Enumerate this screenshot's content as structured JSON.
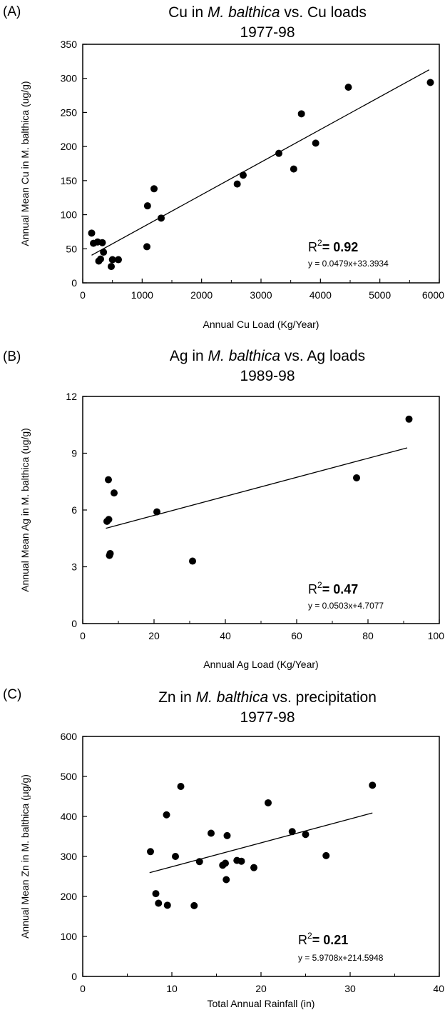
{
  "chart_data": [
    {
      "type": "scatter",
      "panel_label": "(A)",
      "title": {
        "prefix": "Cu in ",
        "italic": "M. balthica",
        "suffix": " vs. Cu loads",
        "line2": "1977-98"
      },
      "xlabel": "Annual Cu Load (Kg/Year)",
      "ylabel": "Annual Mean Cu in M. balthica (ug/g)",
      "xlim": [
        0,
        6000
      ],
      "ylim": [
        0,
        350
      ],
      "xticks": [
        0,
        1000,
        2000,
        3000,
        4000,
        5000,
        6000
      ],
      "yticks": [
        0,
        50,
        100,
        150,
        200,
        250,
        300,
        350
      ],
      "x": [
        150,
        180,
        250,
        270,
        300,
        330,
        350,
        480,
        500,
        600,
        1080,
        1090,
        1200,
        1320,
        2600,
        2700,
        3300,
        3550,
        3680,
        3920,
        4470,
        5850
      ],
      "y": [
        73,
        58,
        60,
        32,
        35,
        59,
        45,
        24,
        34,
        34,
        53,
        113,
        138,
        95,
        145,
        158,
        190,
        167,
        248,
        205,
        287,
        294
      ],
      "trendline": {
        "slope": 0.0479,
        "intercept": 33.3934,
        "x_range": [
          150,
          5830
        ]
      },
      "r2_label": "R",
      "r2_sup": "2",
      "r2_value": "= 0.92",
      "equation": "y = 0.0479x+33.3934"
    },
    {
      "type": "scatter",
      "panel_label": "(B)",
      "title": {
        "prefix": "Ag in ",
        "italic": "M. balthica",
        "suffix": " vs. Ag loads",
        "line2": "1989-98"
      },
      "xlabel": "Annual Ag Load (Kg/Year)",
      "ylabel": "Annual Mean Ag in M. balthica (ug/g)",
      "xlim": [
        0,
        100
      ],
      "ylim": [
        0,
        12
      ],
      "xticks": [
        0,
        20,
        40,
        60,
        80,
        100
      ],
      "yticks": [
        0,
        3,
        6,
        9,
        12
      ],
      "x": [
        6.8,
        7.2,
        7.3,
        7.5,
        7.7,
        8.8,
        20.8,
        30.8,
        76.8,
        91.5
      ],
      "y": [
        5.4,
        7.6,
        5.5,
        3.6,
        3.7,
        6.9,
        5.9,
        3.3,
        7.7,
        10.8
      ],
      "trendline": {
        "slope": 0.0503,
        "intercept": 4.7077,
        "x_range": [
          6.5,
          91
        ]
      },
      "r2_label": "R",
      "r2_sup": "2",
      "r2_value": "= 0.47",
      "equation": "y = 0.0503x+4.7077"
    },
    {
      "type": "scatter",
      "panel_label": "(C)",
      "title": {
        "prefix": "Zn in ",
        "italic": "M. balthica",
        "suffix": " vs. precipitation",
        "line2": "1977-98"
      },
      "xlabel": "Total Annual Rainfall (in)",
      "ylabel": "Annual Mean Zn in M. balthica (µg/g)",
      "xlim": [
        0,
        40
      ],
      "ylim": [
        0,
        600
      ],
      "xticks": [
        0,
        10,
        20,
        30,
        40
      ],
      "yticks": [
        0,
        100,
        200,
        300,
        400,
        500,
        600
      ],
      "x": [
        7.6,
        8.2,
        8.5,
        9.4,
        9.5,
        10.4,
        11.0,
        12.5,
        13.1,
        14.4,
        15.7,
        16.0,
        16.1,
        16.2,
        17.3,
        17.8,
        19.2,
        20.8,
        23.5,
        25.0,
        27.3,
        32.5
      ],
      "y": [
        312,
        207,
        183,
        404,
        178,
        300,
        475,
        177,
        287,
        358,
        278,
        283,
        242,
        352,
        290,
        288,
        272,
        434,
        362,
        355,
        302,
        478
      ],
      "trendline": {
        "slope": 5.9708,
        "intercept": 214.5948,
        "x_range": [
          7.5,
          32.5
        ]
      },
      "r2_label": "R",
      "r2_sup": "2",
      "r2_value": "= 0.21",
      "equation": "y = 5.9708x+214.5948"
    }
  ]
}
